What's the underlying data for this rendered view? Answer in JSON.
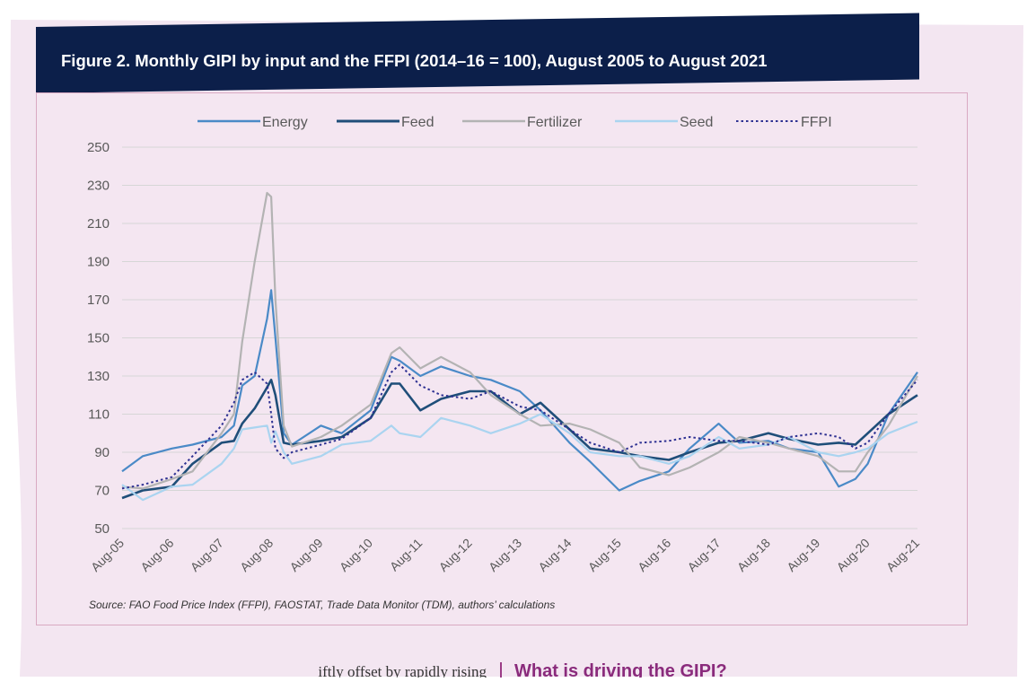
{
  "figure": {
    "title": "Figure 2. Monthly GIPI by input and the FFPI (2014–16 = 100), August 2005 to August 2021",
    "source": "Source: FAO Food Price Index (FFPI), FAOSTAT, Trade Data Monitor (TDM), authors’ calculations"
  },
  "body": {
    "snippet": "iftly offset by rapidly rising",
    "section_heading": "What is driving the GIPI?"
  },
  "colors": {
    "header_bg": "#0c1f4a",
    "panel_bg": "#f4e6f1",
    "accent": "#8a2b7c"
  },
  "chart_data": {
    "type": "line",
    "title": "Figure 2. Monthly GIPI by input and the FFPI (2014–16 = 100), August 2005 to August 2021",
    "xlabel": "",
    "ylabel": "",
    "ylim": [
      50,
      250
    ],
    "yticks": [
      50,
      70,
      90,
      110,
      130,
      150,
      170,
      190,
      210,
      230,
      250
    ],
    "grid": "horizontal",
    "legend_position": "top",
    "categories": [
      "Aug-05",
      "Aug-06",
      "Aug-07",
      "Aug-08",
      "Aug-09",
      "Aug-10",
      "Aug-11",
      "Aug-12",
      "Aug-13",
      "Aug-14",
      "Aug-15",
      "Aug-16",
      "Aug-17",
      "Aug-18",
      "Aug-19",
      "Aug-20",
      "Aug-21"
    ],
    "x": [
      2005.583,
      2006.0,
      2006.583,
      2007.0,
      2007.583,
      2007.833,
      2008.0,
      2008.25,
      2008.5,
      2008.583,
      2008.667,
      2008.833,
      2009.0,
      2009.583,
      2010.0,
      2010.583,
      2011.0,
      2011.167,
      2011.583,
      2012.0,
      2012.583,
      2013.0,
      2013.583,
      2014.0,
      2014.583,
      2015.0,
      2015.583,
      2016.0,
      2016.583,
      2017.0,
      2017.583,
      2018.0,
      2018.583,
      2019.0,
      2019.583,
      2020.0,
      2020.333,
      2020.583,
      2021.0,
      2021.583
    ],
    "series": [
      {
        "name": "Energy",
        "color": "#4a8ac7",
        "dash": "solid",
        "values": [
          80,
          88,
          92,
          94,
          98,
          104,
          125,
          130,
          160,
          175,
          150,
          100,
          94,
          104,
          100,
          112,
          140,
          138,
          130,
          135,
          130,
          128,
          122,
          112,
          95,
          85,
          70,
          75,
          80,
          92,
          105,
          95,
          96,
          92,
          90,
          72,
          76,
          84,
          110,
          132
        ]
      },
      {
        "name": "Feed",
        "color": "#1f4e79",
        "dash": "solid",
        "values": [
          66,
          70,
          72,
          84,
          95,
          96,
          105,
          113,
          124,
          128,
          120,
          95,
          94,
          96,
          98,
          108,
          126,
          126,
          112,
          118,
          122,
          122,
          110,
          116,
          102,
          92,
          90,
          88,
          86,
          90,
          95,
          96,
          100,
          97,
          94,
          95,
          94,
          100,
          110,
          120
        ]
      },
      {
        "name": "Fertilizer",
        "color": "#b3b3b3",
        "dash": "solid",
        "values": [
          72,
          71,
          76,
          80,
          100,
          110,
          148,
          190,
          226,
          224,
          170,
          104,
          93,
          98,
          104,
          115,
          142,
          145,
          134,
          140,
          132,
          120,
          110,
          104,
          105,
          102,
          95,
          82,
          78,
          82,
          90,
          98,
          95,
          92,
          88,
          80,
          80,
          90,
          104,
          130
        ]
      },
      {
        "name": "Seed",
        "color": "#aad4f0",
        "dash": "solid",
        "values": [
          73,
          65,
          72,
          73,
          84,
          92,
          102,
          103,
          104,
          95,
          101,
          90,
          84,
          88,
          94,
          96,
          104,
          100,
          98,
          108,
          104,
          100,
          105,
          110,
          100,
          90,
          88,
          88,
          84,
          88,
          98,
          92,
          94,
          98,
          90,
          88,
          90,
          92,
          100,
          106
        ]
      },
      {
        "name": "FFPI",
        "color": "#2e3192",
        "dash": "dotted",
        "values": [
          71,
          73,
          77,
          88,
          104,
          116,
          128,
          132,
          126,
          110,
          92,
          87,
          90,
          94,
          97,
          108,
          132,
          136,
          125,
          120,
          118,
          122,
          114,
          112,
          102,
          95,
          90,
          95,
          96,
          98,
          96,
          96,
          94,
          98,
          100,
          98,
          92,
          95,
          110,
          128
        ]
      }
    ]
  }
}
